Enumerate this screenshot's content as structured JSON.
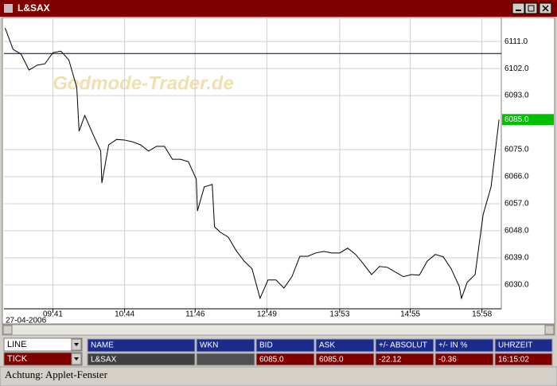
{
  "window": {
    "title": "L&SAX"
  },
  "watermark": "Godmode-Trader.de",
  "chart_data": {
    "type": "line",
    "x": [
      "08:59",
      "09:06",
      "09:13",
      "09:20",
      "09:27",
      "09:34",
      "09:41",
      "09:48",
      "09:55",
      "10:02",
      "10:04",
      "10:09",
      "10:16",
      "10:23",
      "10:24",
      "10:30",
      "10:37",
      "10:44",
      "10:51",
      "10:58",
      "11:05",
      "11:12",
      "11:19",
      "11:26",
      "11:33",
      "11:40",
      "11:47",
      "11:48",
      "11:54",
      "12:01",
      "12:03",
      "12:08",
      "12:15",
      "12:22",
      "12:29",
      "12:36",
      "12:43",
      "12:50",
      "12:57",
      "13:04",
      "13:11",
      "13:18",
      "13:25",
      "13:32",
      "13:39",
      "13:46",
      "13:53",
      "14:00",
      "14:07",
      "14:14",
      "14:21",
      "14:28",
      "14:35",
      "14:42",
      "14:49",
      "14:56",
      "15:03",
      "15:10",
      "15:17",
      "15:24",
      "15:31",
      "15:38",
      "15:40",
      "15:45",
      "15:52",
      "15:59",
      "16:06",
      "16:13"
    ],
    "values": [
      6115.5,
      6108.4,
      6106.8,
      6101.5,
      6103.1,
      6103.6,
      6107.3,
      6107.8,
      6104.9,
      6095.6,
      6081.1,
      6086.4,
      6080.3,
      6074.5,
      6063.9,
      6076.6,
      6078.4,
      6078.2,
      6077.6,
      6076.6,
      6074.5,
      6076.1,
      6076.1,
      6071.8,
      6071.8,
      6071.0,
      6065.2,
      6054.6,
      6062.6,
      6063.4,
      6049.3,
      6047.5,
      6045.9,
      6041.4,
      6037.9,
      6035.3,
      6025.5,
      6031.6,
      6031.6,
      6028.9,
      6032.7,
      6039.5,
      6039.5,
      6040.6,
      6041.1,
      6040.6,
      6040.6,
      6042.2,
      6040.1,
      6036.9,
      6033.4,
      6036.1,
      6035.8,
      6034.2,
      6032.7,
      6033.4,
      6033.2,
      6037.9,
      6040.1,
      6039.3,
      6035.3,
      6029.5,
      6025.5,
      6030.8,
      6033.4,
      6053.3,
      6062.6,
      6085.0
    ],
    "color": "#000000",
    "xlim": [
      "08:58",
      "16:15"
    ],
    "xticks": [
      "09:41",
      "10:44",
      "11:46",
      "12:49",
      "13:53",
      "14:55",
      "15:58"
    ],
    "ylim": [
      6022,
      6119
    ],
    "yticks": [
      {
        "value": 6111,
        "label": "6111.0"
      },
      {
        "value": 6102,
        "label": "6102.0"
      },
      {
        "value": 6093,
        "label": "6093.0"
      },
      {
        "value": 6075,
        "label": "6075.0"
      },
      {
        "value": 6066,
        "label": "6066.0"
      },
      {
        "value": 6057,
        "label": "6057.0"
      },
      {
        "value": 6048,
        "label": "6048.0"
      },
      {
        "value": 6039,
        "label": "6039.0"
      },
      {
        "value": 6030,
        "label": "6030.0"
      }
    ],
    "grid": true,
    "ref_line": 6107,
    "last_value": {
      "value": 6085,
      "label": "6085.0",
      "color": "#00c000"
    },
    "date": "27-04-2006"
  },
  "controls": {
    "chart_style": "LINE",
    "interval": "TICK"
  },
  "quote_table": {
    "headers": [
      "NAME",
      "WKN",
      "BID",
      "ASK",
      "+/- ABSOLUT",
      "+/- IN %",
      "UHRZEIT"
    ],
    "rows": [
      [
        "L&SAX",
        null,
        "6085.0",
        "6085.0",
        "-22.12",
        "-0.36",
        "16:15:02"
      ]
    ]
  },
  "status_bar": "Achtung: Applet-Fenster"
}
